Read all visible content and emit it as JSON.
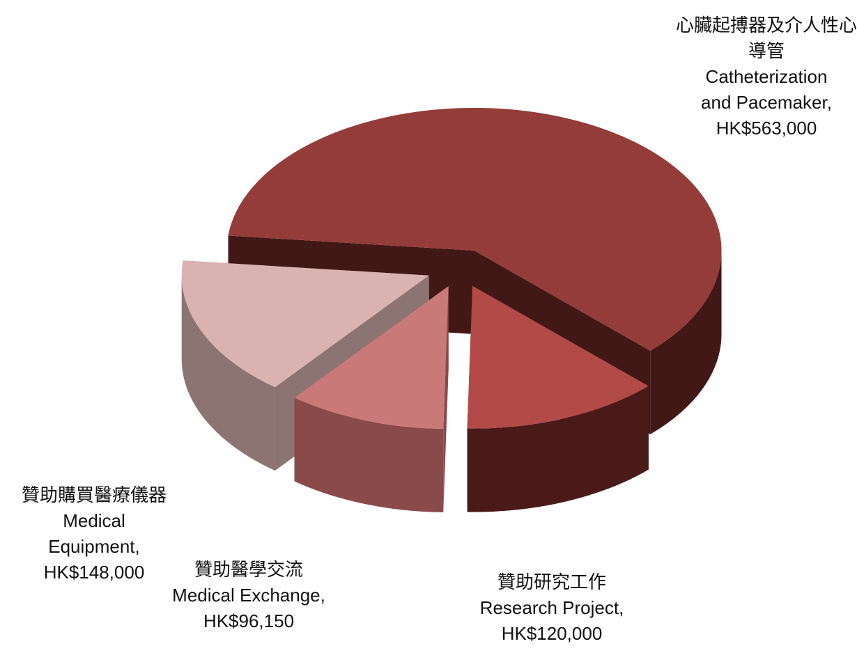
{
  "chart_data": {
    "type": "pie",
    "chinese_names": [
      "心臟起搏器及介人性心導管",
      "贊助研究工作",
      "贊助醫學交流",
      "贊助購買醫療儀器"
    ],
    "categories": [
      "Catheterization and Pacemaker,",
      "Research Project,",
      "Medical Exchange,",
      "Medical Equipment,"
    ],
    "values": [
      563000,
      120000,
      96150,
      148000
    ],
    "value_labels": [
      "HK$563,000",
      "HK$120,000",
      "HK$96,150",
      "HK$148,000"
    ],
    "colors": [
      "#943c3a",
      "#b24a47",
      "#c97a78",
      "#dbb2b2"
    ],
    "side_colors": [
      "#421817",
      "#4a1a19",
      "#8a4a4a",
      "#8c7472"
    ],
    "exploded": true,
    "three_d": true
  }
}
